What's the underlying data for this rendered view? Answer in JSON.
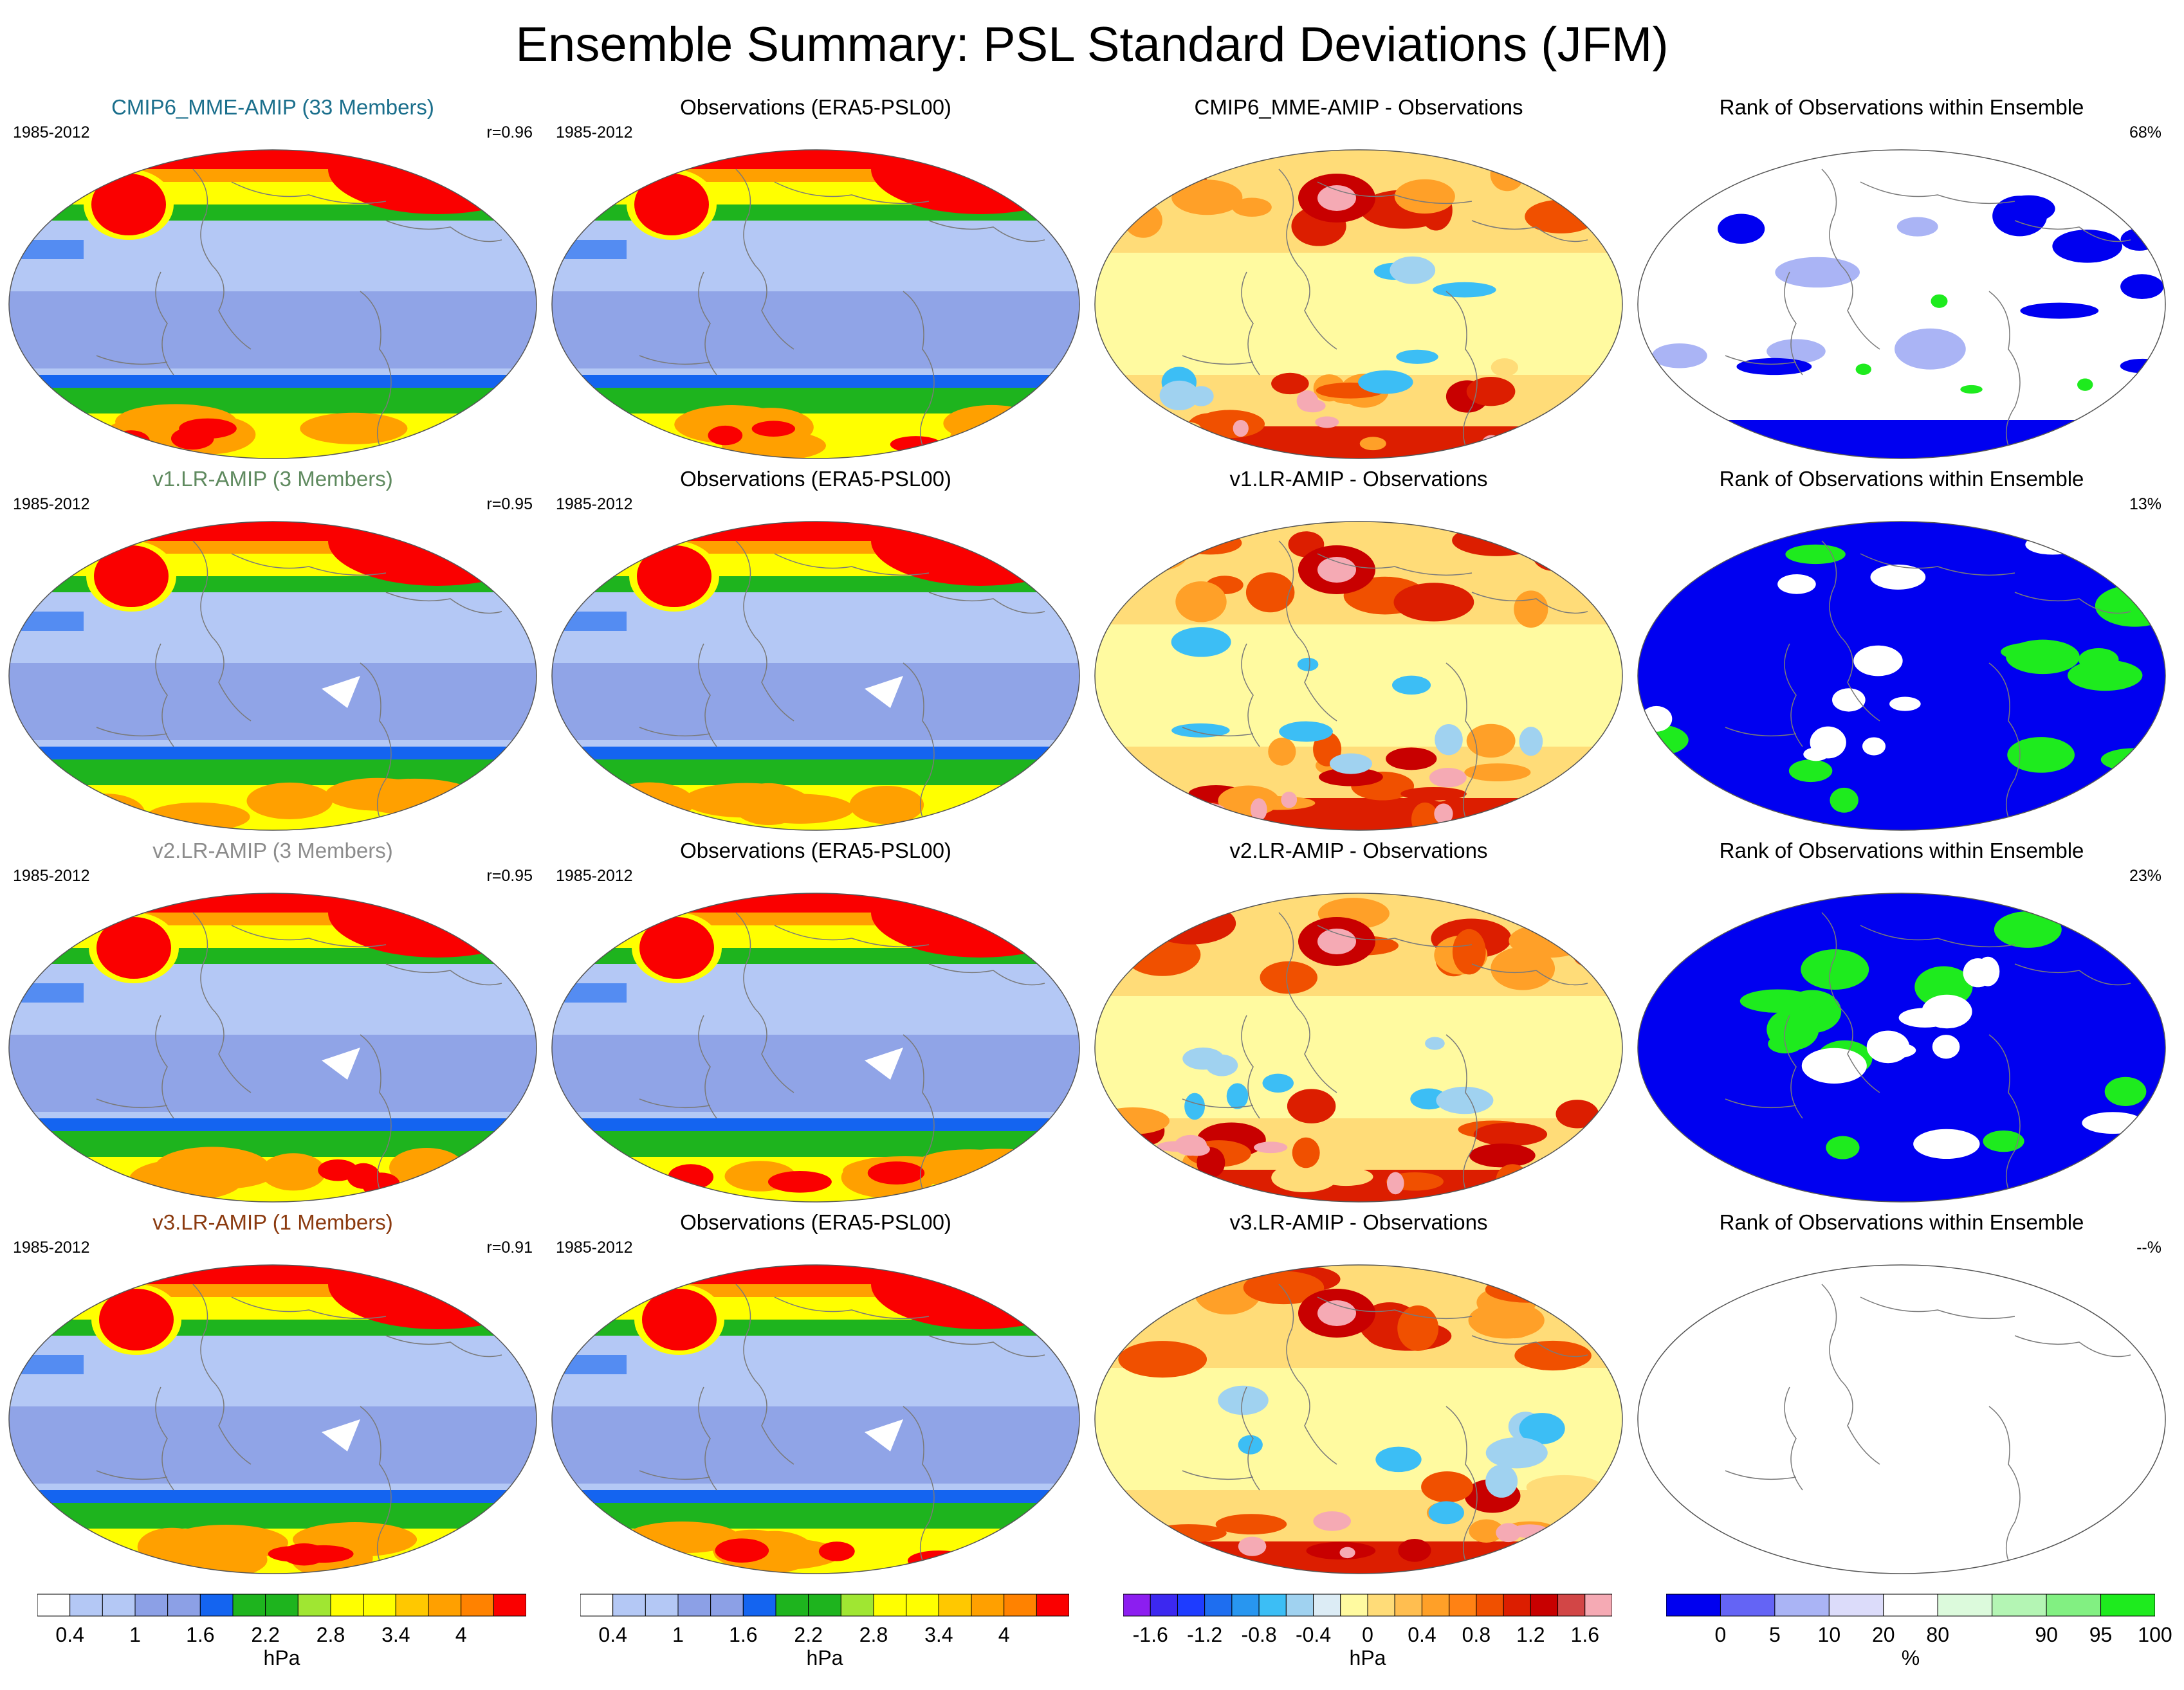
{
  "title": "Ensemble Summary: PSL Standard Deviations (JFM)",
  "rows": [
    {
      "ens_title": "CMIP6_MME-AMIP (33 Members)",
      "ens_color": "#1b6f8c",
      "ens_years": "1985-2012",
      "ens_r": "r=0.96",
      "obs_title": "Observations (ERA5-PSL00)",
      "obs_years": "1985-2012",
      "diff_title": "CMIP6_MME-AMIP - Observations",
      "rank_title": "Rank of Observations within Ensemble",
      "rank_pct": "68%"
    },
    {
      "ens_title": "v1.LR-AMIP (3 Members)",
      "ens_color": "#5f8a5f",
      "ens_years": "1985-2012",
      "ens_r": "r=0.95",
      "obs_title": "Observations (ERA5-PSL00)",
      "obs_years": "1985-2012",
      "diff_title": "v1.LR-AMIP - Observations",
      "rank_title": "Rank of Observations within Ensemble",
      "rank_pct": "13%"
    },
    {
      "ens_title": "v2.LR-AMIP (3 Members)",
      "ens_color": "#8c8c8c",
      "ens_years": "1985-2012",
      "ens_r": "r=0.95",
      "obs_title": "Observations (ERA5-PSL00)",
      "obs_years": "1985-2012",
      "diff_title": "v2.LR-AMIP - Observations",
      "rank_title": "Rank of Observations within Ensemble",
      "rank_pct": "23%"
    },
    {
      "ens_title": "v3.LR-AMIP (1 Members)",
      "ens_color": "#8b3a0f",
      "ens_years": "1985-2012",
      "ens_r": "r=0.91",
      "obs_title": "Observations (ERA5-PSL00)",
      "obs_years": "1985-2012",
      "diff_title": "v3.LR-AMIP - Observations",
      "rank_title": "Rank of Observations within Ensemble",
      "rank_pct": "--%"
    }
  ],
  "colorbars": {
    "sd": {
      "unit": "hPa",
      "colors": [
        "#ffffff",
        "#b4c8f5",
        "#b4c8f5",
        "#8ca0e6",
        "#8ca0e6",
        "#1464f0",
        "#1eb41e",
        "#1eb41e",
        "#a0e632",
        "#ffff00",
        "#ffff00",
        "#ffc800",
        "#ffa000",
        "#ff8200",
        "#fa0000"
      ],
      "ticks": [
        "0.4",
        "1",
        "1.6",
        "2.2",
        "2.8",
        "3.4",
        "4"
      ]
    },
    "diff": {
      "unit": "hPa",
      "colors": [
        "#8c1ef0",
        "#3c28f0",
        "#1e3cff",
        "#1e6ef0",
        "#2896f0",
        "#3cbef5",
        "#a0d2f0",
        "#dcecf5",
        "#fffaa0",
        "#ffdc78",
        "#ffbe50",
        "#ffa028",
        "#ff8214",
        "#f05000",
        "#dc1e00",
        "#c80000",
        "#d24646",
        "#f5aab4"
      ],
      "ticks": [
        "-1.6",
        "-1.2",
        "-0.8",
        "-0.4",
        "0",
        "0.4",
        "0.8",
        "1.2",
        "1.6"
      ]
    },
    "rank": {
      "unit": "%",
      "colors": [
        "#0000f0",
        "#6464f5",
        "#aab4f5",
        "#dcdcfa",
        "#ffffff",
        "#dcfadc",
        "#b4f5b4",
        "#82f082",
        "#1eeb1e"
      ],
      "ticks": [
        "0",
        "5",
        "10",
        "20",
        "80",
        "90",
        "95",
        "100"
      ]
    }
  },
  "palette": {
    "sd_lvls": [
      "#b4c8f5",
      "#8ca0e6",
      "#1464f0",
      "#1eb41e",
      "#a0e632",
      "#ffff00",
      "#ffa000",
      "#fa0000"
    ],
    "diff_lvls": [
      "#3cbef5",
      "#a0d2f0",
      "#fffaa0",
      "#ffdc78",
      "#ffa028",
      "#f05000",
      "#dc1e00",
      "#c80000",
      "#f5aab4"
    ],
    "rank_lvls": [
      "#0000f0",
      "#ffffff",
      "#1eeb1e",
      "#aab4f5"
    ]
  }
}
